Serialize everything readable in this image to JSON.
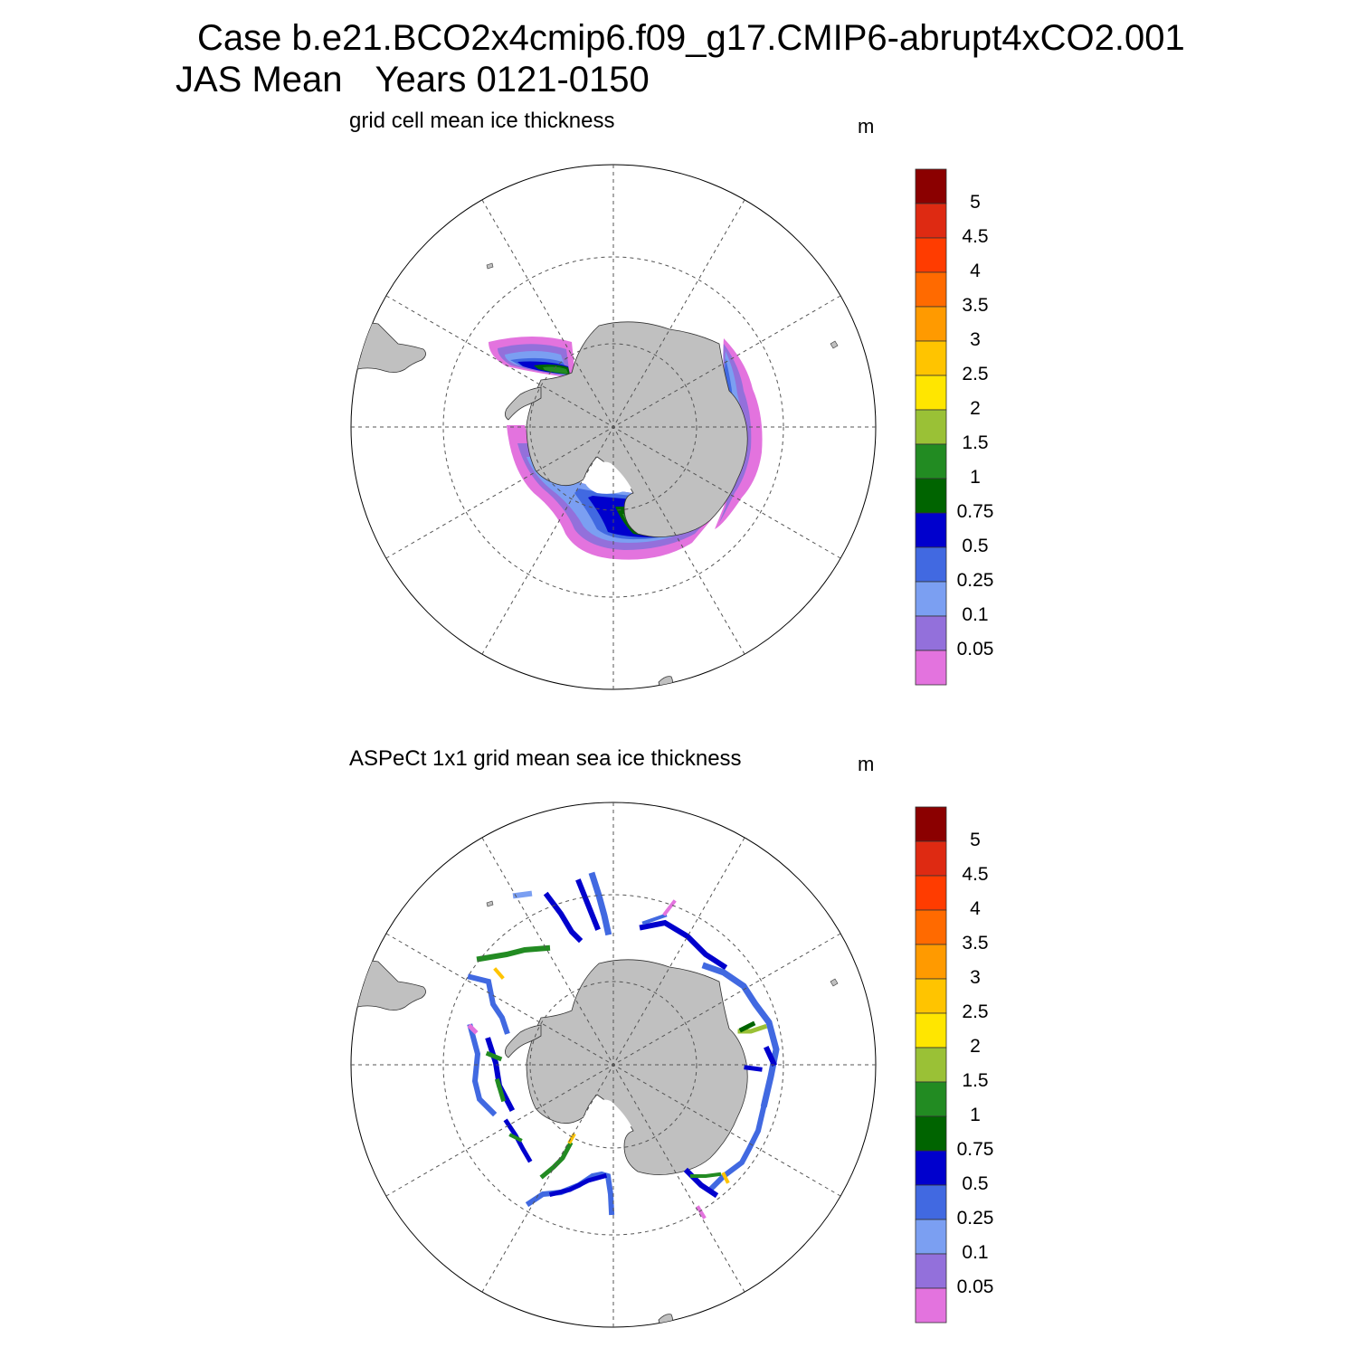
{
  "title": {
    "case_line": "Case b.e21.BCO2x4cmip6.f09_g17.CMIP6-abrupt4xCO2.001",
    "season": "JAS Mean",
    "years": "Years 0121-0150"
  },
  "panels": [
    {
      "title": "grid cell mean ice thickness",
      "units": "m"
    },
    {
      "title": "ASPeCt 1x1 grid mean sea ice thickness",
      "units": "m"
    }
  ],
  "colorbar": {
    "labels": [
      "5",
      "4.5",
      "4",
      "3.5",
      "3",
      "2.5",
      "2",
      "1.5",
      "1",
      "0.75",
      "0.5",
      "0.25",
      "0.1",
      "0.05"
    ],
    "colors": [
      "#8b0000",
      "#de2a12",
      "#ff3c00",
      "#ff6a00",
      "#ff9a00",
      "#ffc400",
      "#ffe600",
      "#9ac136",
      "#228b22",
      "#006400",
      "#0000cd",
      "#4169e1",
      "#7b9ff2",
      "#9370db",
      "#e373de"
    ]
  },
  "map_style": {
    "land": "#c0c0c0",
    "grid": "#555555"
  }
}
